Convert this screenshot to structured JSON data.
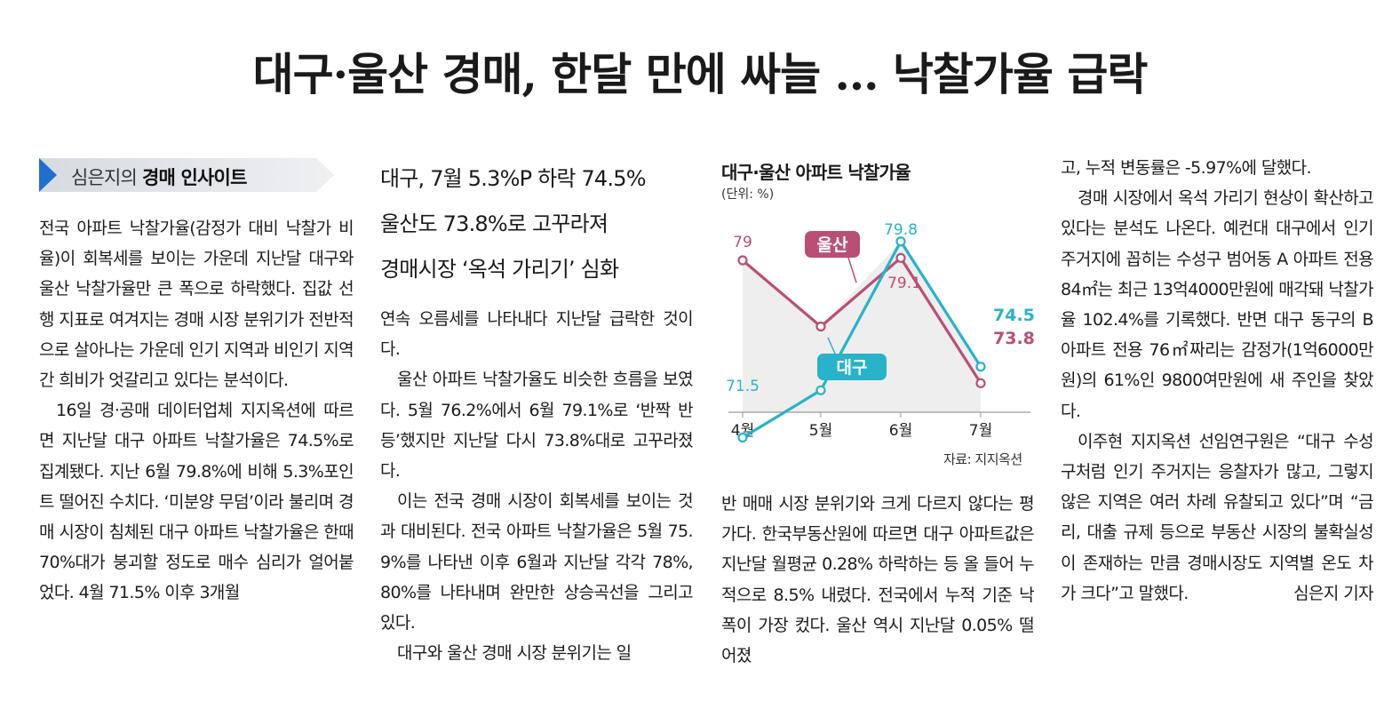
{
  "headline": "대구·울산 경매, 한달 만에 싸늘 … 낙찰가율 급락",
  "series_banner": {
    "author": "심은지의 ",
    "title": "경매 인사이트"
  },
  "subheadline": [
    "대구, 7월 5.3%P 하락 74.5%",
    "울산도 73.8%로 고꾸라져",
    "경매시장 ‘옥석 가리기’ 심화"
  ],
  "article": {
    "col1": [
      "전국 아파트 낙찰가율(감정가 대비 낙찰가 비율)이 회복세를 보이는 가운데 지난달 대구와 울산 낙찰가율만 큰 폭으로 하락했다. 집값 선행 지표로 여겨지는 경매 시장 분위기가 전반적으로 살아나는 가운데 인기 지역과 비인기 지역 간 희비가 엇갈리고 있다는 분석이다.",
      "16일 경·공매 데이터업체 지지옥션에 따르면 지난달 대구 아파트 낙찰가율은 74.5%로 집계됐다. 지난 6월 79.8%에 비해 5.3%포인트 떨어진 수치다. ‘미분양 무덤’이라 불리며 경매 시장이 침체된 대구 아파트 낙찰가율은 한때 70%대가 붕괴할 정도로 매수 심리가 얼어붙었다. 4월 71.5% 이후 3개월"
    ],
    "col2": [
      "연속 오름세를 나타내다 지난달 급락한 것이다.",
      "울산 아파트 낙찰가율도 비슷한 흐름을 보였다. 5월 76.2%에서 6월 79.1%로 ‘반짝 반등’했지만 지난달 다시 73.8%대로 고꾸라졌다.",
      "이는 전국 경매 시장이 회복세를 보이는 것과 대비된다. 전국 아파트 낙찰가율은 5월 75.9%를 나타낸 이후 6월과 지난달 각각 78%, 80%를 나타내며 완만한 상승곡선을 그리고 있다.",
      "대구와 울산 경매 시장 분위기는 일"
    ],
    "col3": [
      "반 매매 시장 분위기와 크게 다르지 않다는 평가다. 한국부동산원에 따르면 대구 아파트값은 지난달 월평균 0.28% 하락하는 등 올 들어 누적으로 8.5% 내렸다. 전국에서 누적 기준 낙폭이 가장 컸다. 울산 역시 지난달 0.05% 떨어졌"
    ],
    "col4": [
      "고, 누적 변동률은 -5.97%에 달했다.",
      "경매 시장에서 옥석 가리기 현상이 확산하고 있다는 분석도 나온다. 예컨대 대구에서 인기 주거지에 꼽히는 수성구 범어동 A 아파트 전용 84㎡는 최근 13억4000만원에 매각돼 낙찰가율 102.4%를 기록했다. 반면 대구 동구의 B아파트 전용 76㎡짜리는 감정가(1억6000만원)의 61%인 9800여만원에 새 주인을 찾았다.",
      "이주현 지지옥션 선임연구원은 “대구 수성구처럼 인기 주거지는 응찰자가 많고, 그렇지 않은 지역은 여러 차례 유찰되고 있다”며 “금리, 대출 규제 등으로 부동산 시장의 불확실성이 존재하는 만큼 경매시장도 지역별 온도 차가 크다”고 말했다."
    ],
    "byline": "심은지 기자"
  },
  "chart_data": {
    "type": "line",
    "title": "대구·울산 아파트 낙찰가율",
    "unit": "(단위: %)",
    "categories": [
      "4월",
      "5월",
      "6월",
      "7월"
    ],
    "series": [
      {
        "name": "울산",
        "values": [
          79,
          76.2,
          79.1,
          73.8
        ],
        "labels": [
          "79",
          "",
          "79.1",
          "73.8"
        ],
        "color": "#b94f75"
      },
      {
        "name": "대구",
        "values": [
          71.5,
          73.5,
          79.8,
          74.5
        ],
        "labels": [
          "71.5",
          "",
          "79.8",
          "74.5"
        ],
        "color": "#27b3c9"
      }
    ],
    "source": "자료: 지지옥션"
  }
}
